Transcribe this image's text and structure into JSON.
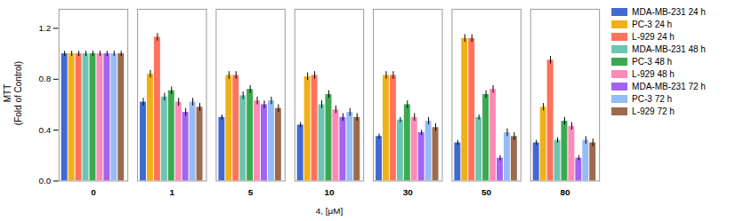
{
  "chart_data": {
    "type": "bar",
    "categories": [
      "0",
      "1",
      "5",
      "10",
      "30",
      "50",
      "80"
    ],
    "series": [
      {
        "name": "MDA-MB-231 24 h",
        "values": [
          1.0,
          0.62,
          0.5,
          0.44,
          0.35,
          0.3,
          0.3
        ],
        "errors": [
          0.02,
          0.03,
          0.02,
          0.02,
          0.02,
          0.02,
          0.02
        ]
      },
      {
        "name": "PC-3 24 h",
        "values": [
          1.0,
          0.84,
          0.83,
          0.82,
          0.83,
          1.12,
          0.58
        ],
        "errors": [
          0.02,
          0.03,
          0.03,
          0.03,
          0.03,
          0.03,
          0.03
        ]
      },
      {
        "name": "L-929 24 h",
        "values": [
          1.0,
          1.13,
          0.83,
          0.83,
          0.83,
          1.12,
          0.95
        ],
        "errors": [
          0.02,
          0.03,
          0.03,
          0.03,
          0.03,
          0.03,
          0.03
        ]
      },
      {
        "name": "MDA-MB-231 48 h",
        "values": [
          1.0,
          0.66,
          0.67,
          0.6,
          0.48,
          0.5,
          0.32
        ],
        "errors": [
          0.02,
          0.03,
          0.03,
          0.03,
          0.02,
          0.02,
          0.02
        ]
      },
      {
        "name": "PC-3 48 h",
        "values": [
          1.0,
          0.71,
          0.72,
          0.68,
          0.6,
          0.68,
          0.47
        ],
        "errors": [
          0.02,
          0.03,
          0.03,
          0.03,
          0.03,
          0.03,
          0.03
        ]
      },
      {
        "name": "L-929 48 h",
        "values": [
          1.0,
          0.62,
          0.63,
          0.56,
          0.5,
          0.72,
          0.43
        ],
        "errors": [
          0.02,
          0.03,
          0.03,
          0.03,
          0.03,
          0.03,
          0.03
        ]
      },
      {
        "name": "MDA-MB-231 72 h",
        "values": [
          1.0,
          0.54,
          0.6,
          0.5,
          0.38,
          0.18,
          0.18
        ],
        "errors": [
          0.02,
          0.03,
          0.03,
          0.03,
          0.02,
          0.02,
          0.02
        ]
      },
      {
        "name": "PC-3 72 h",
        "values": [
          1.0,
          0.62,
          0.63,
          0.54,
          0.47,
          0.38,
          0.32
        ],
        "errors": [
          0.02,
          0.03,
          0.03,
          0.03,
          0.03,
          0.03,
          0.03
        ]
      },
      {
        "name": "L-929 72 h",
        "values": [
          1.0,
          0.58,
          0.57,
          0.5,
          0.42,
          0.35,
          0.3
        ],
        "errors": [
          0.02,
          0.03,
          0.03,
          0.03,
          0.03,
          0.03,
          0.03
        ]
      }
    ],
    "xlabel": "4, [μM]",
    "ylabel": "MTT\n(Fold of Control)",
    "ylim": [
      0.0,
      1.35
    ],
    "yticks": [
      {
        "value": 0.0,
        "label": "0.0"
      },
      {
        "value": 0.4,
        "label": "0.4"
      },
      {
        "value": 0.8,
        "label": "0.8"
      },
      {
        "value": 1.2,
        "label": "1.2"
      }
    ],
    "grid": false,
    "legend": "right"
  }
}
